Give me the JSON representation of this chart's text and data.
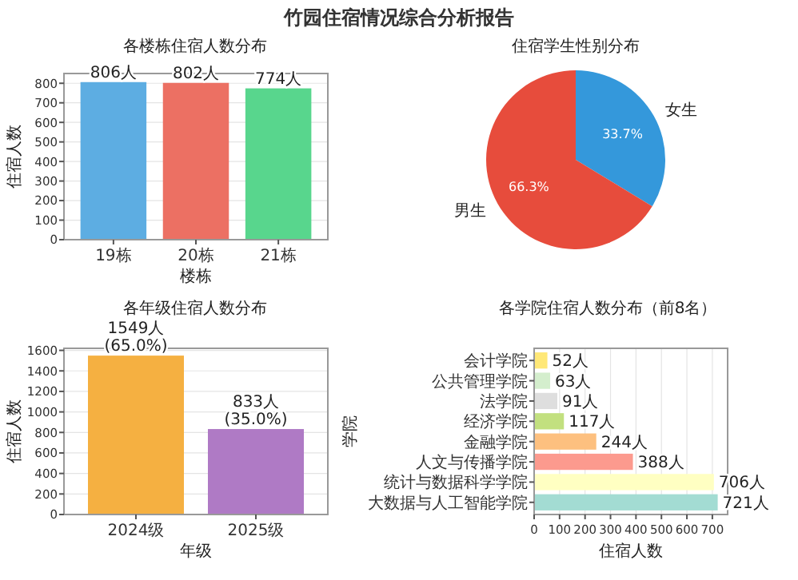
{
  "chart_data": [
    {
      "type": "bar",
      "title": "各楼栋住宿人数分布",
      "xlabel": "楼栋",
      "ylabel": "住宿人数",
      "annotations": [
        "竹园住宿情况综合分析报告"
      ],
      "categories": [
        "19栋",
        "20栋",
        "21栋"
      ],
      "values": [
        806,
        802,
        774
      ],
      "colors": [
        "#5dade2",
        "#ec7063",
        "#58d68d"
      ],
      "ylim": [
        0,
        850
      ],
      "yticks": [
        0,
        100,
        200,
        300,
        400,
        500,
        600,
        700,
        800
      ],
      "grid": "y",
      "value_labels": [
        "806人",
        "802人",
        "774人"
      ]
    },
    {
      "type": "pie",
      "title": "住宿学生性别分布",
      "categories": [
        "女生",
        "男生"
      ],
      "values": [
        33.7,
        66.3
      ],
      "colors": [
        "#3498db",
        "#e74c3c"
      ],
      "value_labels": [
        "33.7%",
        "66.3%"
      ]
    },
    {
      "type": "bar",
      "title": "各年级住宿人数分布",
      "xlabel": "年级",
      "ylabel": "住宿人数",
      "categories": [
        "2024级",
        "2025级"
      ],
      "values": [
        1549,
        833
      ],
      "colors": [
        "#f5b041",
        "#af7ac5"
      ],
      "ylim": [
        0,
        1620
      ],
      "yticks": [
        0,
        200,
        400,
        600,
        800,
        1000,
        1200,
        1400,
        1600
      ],
      "grid": "y",
      "value_labels": [
        "1549人\n(65.0%)",
        "833人\n(35.0%)"
      ]
    },
    {
      "type": "bar",
      "orientation": "horizontal",
      "title": "各学院住宿人数分布（前8名）",
      "xlabel": "住宿人数",
      "ylabel": "学院",
      "categories": [
        "会计学院",
        "公共管理学院",
        "法学院",
        "经济学院",
        "金融学院",
        "人文与传播学院",
        "统计与数据科学学院",
        "大数据与人工智能学院"
      ],
      "values": [
        52,
        63,
        91,
        117,
        244,
        388,
        706,
        721
      ],
      "colors": [
        "#ffe877",
        "#d4eecd",
        "#dedede",
        "#c2e07f",
        "#fdc07f",
        "#fc9a8e",
        "#ffffc2",
        "#a3dcd3"
      ],
      "xlim": [
        0,
        760
      ],
      "xticks": [
        0,
        100,
        200,
        300,
        400,
        500,
        600,
        700
      ],
      "grid": "x",
      "value_labels": [
        "52人",
        "63人",
        "91人",
        "117人",
        "244人",
        "388人",
        "706人",
        "721人"
      ]
    }
  ]
}
